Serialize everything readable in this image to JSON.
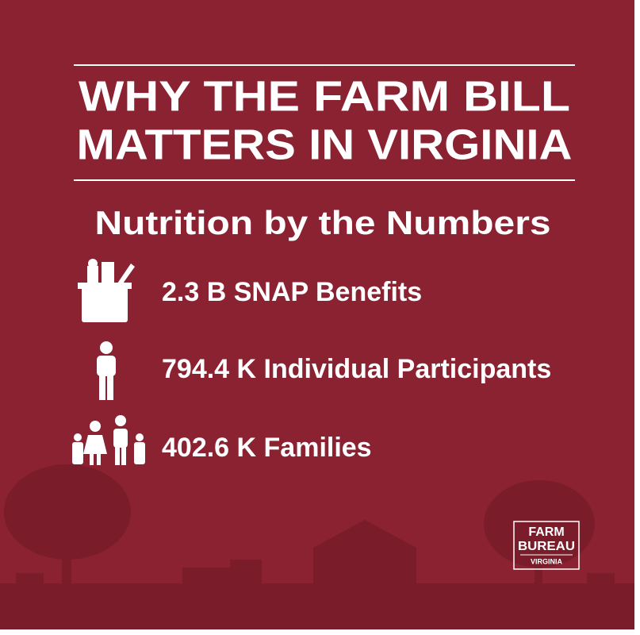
{
  "header": {
    "title_lines": [
      "WHY THE FARM BILL",
      "MATTERS IN VIRGINIA"
    ]
  },
  "subtitle": "Nutrition by the Numbers",
  "stats": [
    {
      "text": "2.3 B SNAP Benefits"
    },
    {
      "text": "794.4 K Individual Participants"
    },
    {
      "text": "402.6 K Families"
    }
  ],
  "logo": {
    "lines": [
      "FARM",
      "BUREAU",
      "VIRGINIA"
    ]
  }
}
